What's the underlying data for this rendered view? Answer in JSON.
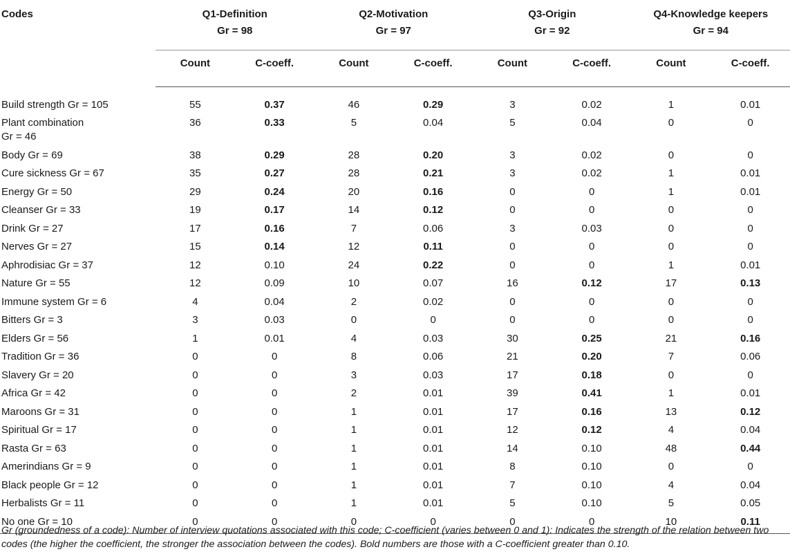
{
  "table": {
    "codes_header": "Codes",
    "questions": [
      {
        "label": "Q1-Definition",
        "gr": "Gr = 98"
      },
      {
        "label": "Q2-Motivation",
        "gr": "Gr = 97"
      },
      {
        "label": "Q3-Origin",
        "gr": "Gr = 92"
      },
      {
        "label": "Q4-Knowledge keepers",
        "gr": "Gr = 94"
      }
    ],
    "sub_headers": [
      "Count",
      "C-coeff."
    ],
    "rows": [
      {
        "code": "Build strength Gr = 105",
        "cells": [
          [
            "55",
            "0.37",
            true
          ],
          [
            "46",
            "0.29",
            true
          ],
          [
            "3",
            "0.02",
            false
          ],
          [
            "1",
            "0.01",
            false
          ]
        ]
      },
      {
        "code": "Plant combination\nGr = 46",
        "cells": [
          [
            "36",
            "0.33",
            true
          ],
          [
            "5",
            "0.04",
            false
          ],
          [
            "5",
            "0.04",
            false
          ],
          [
            "0",
            "0",
            false
          ]
        ]
      },
      {
        "code": "Body Gr = 69",
        "cells": [
          [
            "38",
            "0.29",
            true
          ],
          [
            "28",
            "0.20",
            true
          ],
          [
            "3",
            "0.02",
            false
          ],
          [
            "0",
            "0",
            false
          ]
        ]
      },
      {
        "code": "Cure sickness Gr = 67",
        "cells": [
          [
            "35",
            "0.27",
            true
          ],
          [
            "28",
            "0.21",
            true
          ],
          [
            "3",
            "0.02",
            false
          ],
          [
            "1",
            "0.01",
            false
          ]
        ]
      },
      {
        "code": "Energy Gr = 50",
        "cells": [
          [
            "29",
            "0.24",
            true
          ],
          [
            "20",
            "0.16",
            true
          ],
          [
            "0",
            "0",
            false
          ],
          [
            "1",
            "0.01",
            false
          ]
        ]
      },
      {
        "code": "Cleanser Gr = 33",
        "cells": [
          [
            "19",
            "0.17",
            true
          ],
          [
            "14",
            "0.12",
            true
          ],
          [
            "0",
            "0",
            false
          ],
          [
            "0",
            "0",
            false
          ]
        ]
      },
      {
        "code": "Drink Gr = 27",
        "cells": [
          [
            "17",
            "0.16",
            true
          ],
          [
            "7",
            "0.06",
            false
          ],
          [
            "3",
            "0.03",
            false
          ],
          [
            "0",
            "0",
            false
          ]
        ]
      },
      {
        "code": "Nerves Gr = 27",
        "cells": [
          [
            "15",
            "0.14",
            true
          ],
          [
            "12",
            "0.11",
            true
          ],
          [
            "0",
            "0",
            false
          ],
          [
            "0",
            "0",
            false
          ]
        ]
      },
      {
        "code": "Aphrodisiac Gr = 37",
        "cells": [
          [
            "12",
            "0.10",
            false
          ],
          [
            "24",
            "0.22",
            true
          ],
          [
            "0",
            "0",
            false
          ],
          [
            "1",
            "0.01",
            false
          ]
        ]
      },
      {
        "code": "Nature Gr = 55",
        "cells": [
          [
            "12",
            "0.09",
            false
          ],
          [
            "10",
            "0.07",
            false
          ],
          [
            "16",
            "0.12",
            true
          ],
          [
            "17",
            "0.13",
            true
          ]
        ]
      },
      {
        "code": "Immune system Gr = 6",
        "cells": [
          [
            "4",
            "0.04",
            false
          ],
          [
            "2",
            "0.02",
            false
          ],
          [
            "0",
            "0",
            false
          ],
          [
            "0",
            "0",
            false
          ]
        ]
      },
      {
        "code": "Bitters Gr = 3",
        "cells": [
          [
            "3",
            "0.03",
            false
          ],
          [
            "0",
            "0",
            false
          ],
          [
            "0",
            "0",
            false
          ],
          [
            "0",
            "0",
            false
          ]
        ]
      },
      {
        "code": "Elders Gr = 56",
        "cells": [
          [
            "1",
            "0.01",
            false
          ],
          [
            "4",
            "0.03",
            false
          ],
          [
            "30",
            "0.25",
            true
          ],
          [
            "21",
            "0.16",
            true
          ]
        ]
      },
      {
        "code": "Tradition Gr = 36",
        "cells": [
          [
            "0",
            "0",
            false
          ],
          [
            "8",
            "0.06",
            false
          ],
          [
            "21",
            "0.20",
            true
          ],
          [
            "7",
            "0.06",
            false
          ]
        ]
      },
      {
        "code": "Slavery Gr = 20",
        "cells": [
          [
            "0",
            "0",
            false
          ],
          [
            "3",
            "0.03",
            false
          ],
          [
            "17",
            "0.18",
            true
          ],
          [
            "0",
            "0",
            false
          ]
        ]
      },
      {
        "code": "Africa Gr = 42",
        "cells": [
          [
            "0",
            "0",
            false
          ],
          [
            "2",
            "0.01",
            false
          ],
          [
            "39",
            "0.41",
            true
          ],
          [
            "1",
            "0.01",
            false
          ]
        ]
      },
      {
        "code": "Maroons Gr = 31",
        "cells": [
          [
            "0",
            "0",
            false
          ],
          [
            "1",
            "0.01",
            false
          ],
          [
            "17",
            "0.16",
            true
          ],
          [
            "13",
            "0.12",
            true
          ]
        ]
      },
      {
        "code": "Spiritual Gr = 17",
        "cells": [
          [
            "0",
            "0",
            false
          ],
          [
            "1",
            "0.01",
            false
          ],
          [
            "12",
            "0.12",
            true
          ],
          [
            "4",
            "0.04",
            false
          ]
        ]
      },
      {
        "code": "Rasta Gr = 63",
        "cells": [
          [
            "0",
            "0",
            false
          ],
          [
            "1",
            "0.01",
            false
          ],
          [
            "14",
            "0.10",
            false
          ],
          [
            "48",
            "0.44",
            true
          ]
        ]
      },
      {
        "code": "Amerindians Gr = 9",
        "cells": [
          [
            "0",
            "0",
            false
          ],
          [
            "1",
            "0.01",
            false
          ],
          [
            "8",
            "0.10",
            false
          ],
          [
            "0",
            "0",
            false
          ]
        ]
      },
      {
        "code": "Black people Gr = 12",
        "cells": [
          [
            "0",
            "0",
            false
          ],
          [
            "1",
            "0.01",
            false
          ],
          [
            "7",
            "0.10",
            false
          ],
          [
            "4",
            "0.04",
            false
          ]
        ]
      },
      {
        "code": "Herbalists Gr = 11",
        "cells": [
          [
            "0",
            "0",
            false
          ],
          [
            "1",
            "0.01",
            false
          ],
          [
            "5",
            "0.10",
            false
          ],
          [
            "5",
            "0.05",
            false
          ]
        ]
      },
      {
        "code": "No one Gr = 10",
        "cells": [
          [
            "0",
            "0",
            false
          ],
          [
            "0",
            "0",
            false
          ],
          [
            "0",
            "0",
            false
          ],
          [
            "10",
            "0.11",
            true
          ]
        ]
      }
    ]
  },
  "footnote": "Gr (groundedness of a code): Number of interview quotations associated with this code; C-coefficient (varies between 0 and 1): Indicates the strength of the relation between two codes (the higher the coefficient, the stronger the association between the codes). Bold numbers are those with a C-coefficient greater than 0.10."
}
